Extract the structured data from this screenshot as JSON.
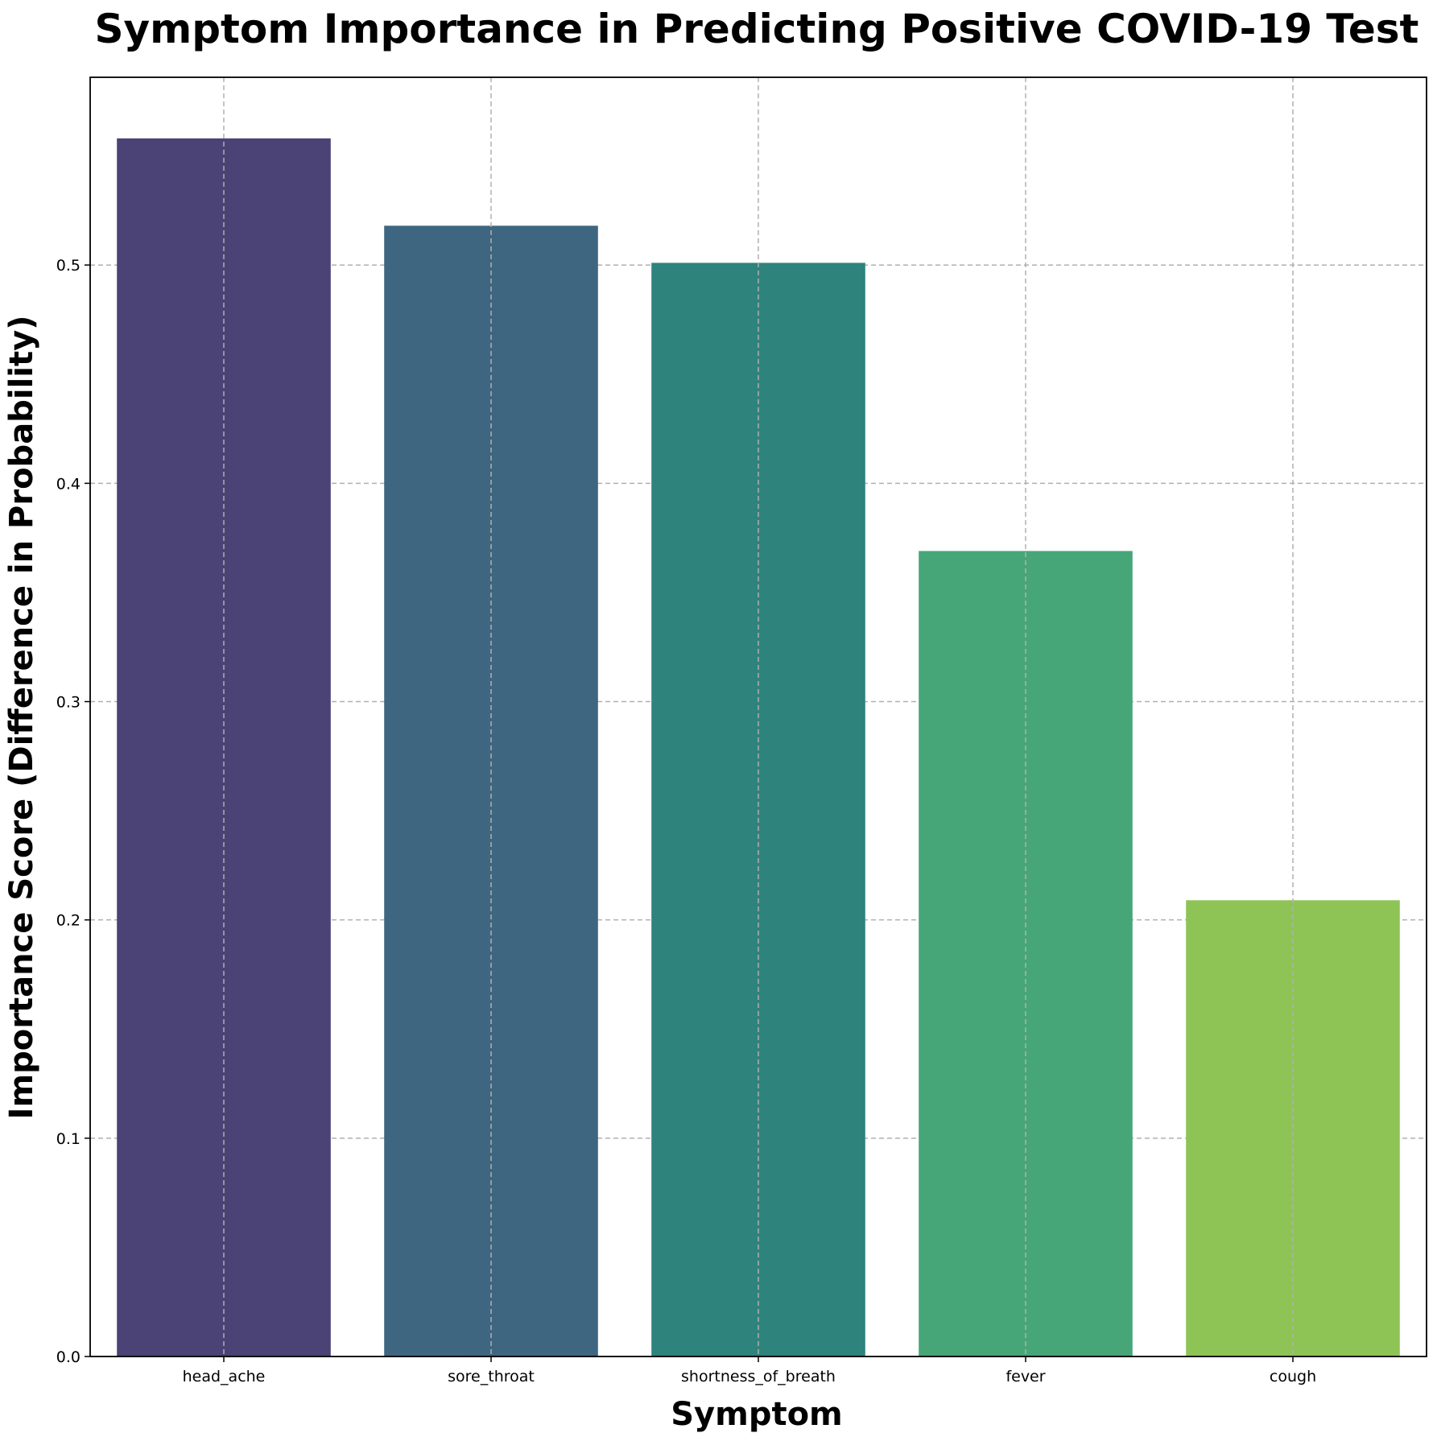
{
  "chart_data": {
    "type": "bar",
    "title": "Symptom Importance in Predicting Positive COVID-19 Test",
    "xlabel": "Symptom",
    "ylabel": "Importance Score (Difference in Probability)",
    "categories": [
      "head_ache",
      "sore_throat",
      "shortness_of_breath",
      "fever",
      "cough"
    ],
    "values": [
      0.558,
      0.518,
      0.501,
      0.369,
      0.209
    ],
    "colors": [
      "#4b4276",
      "#3e6680",
      "#2e837c",
      "#47a677",
      "#8ec456"
    ],
    "ylim": [
      0,
      0.586
    ],
    "yticks": [
      0.0,
      0.1,
      0.2,
      0.3,
      0.4,
      0.5
    ],
    "ytick_labels": [
      "0.0",
      "0.1",
      "0.2",
      "0.3",
      "0.4",
      "0.5"
    ],
    "grid": true,
    "grid_color": "#b0b0b0"
  }
}
